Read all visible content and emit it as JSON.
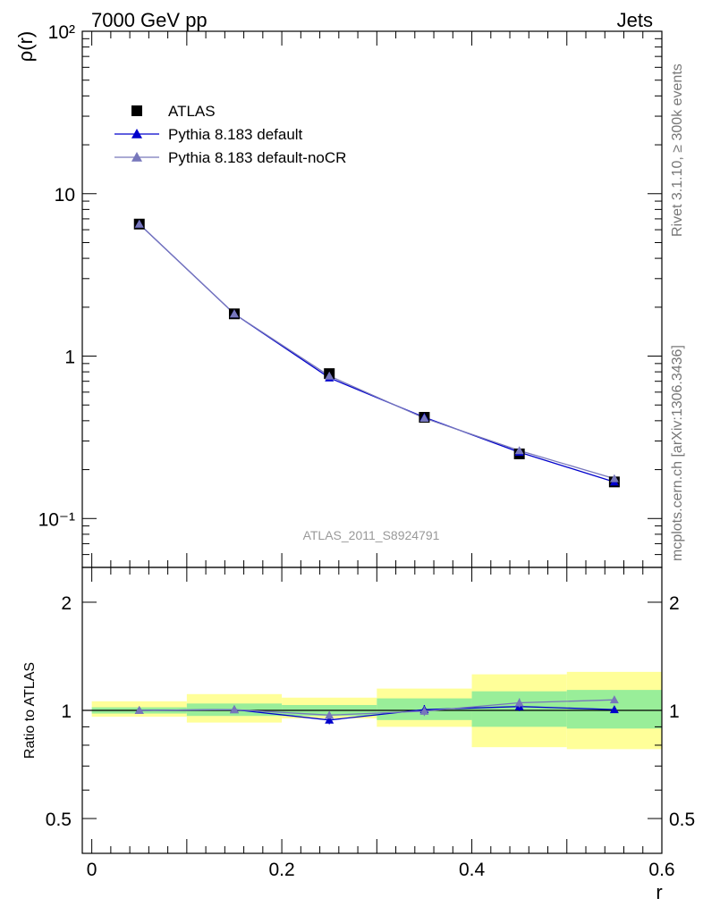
{
  "header": {
    "left": "7000 GeV pp",
    "right": "Jets"
  },
  "side_labels": {
    "rivet": "Rivet 3.1.10, ≥ 300k events",
    "mcplots": "mcplots.cern.ch [arXiv:1306.3436]"
  },
  "analysis_label": "ATLAS_2011_S8924791",
  "chart_data": [
    {
      "type": "line",
      "panel": "main",
      "title": "",
      "xlabel": "r",
      "ylabel": "ρ(r)",
      "yscale": "log",
      "xlim": [
        -0.01,
        0.6
      ],
      "ylim": [
        0.05,
        100
      ],
      "x": [
        0.05,
        0.15,
        0.25,
        0.35,
        0.45,
        0.55
      ],
      "x_bins": [
        [
          0.0,
          0.1
        ],
        [
          0.1,
          0.2
        ],
        [
          0.2,
          0.3
        ],
        [
          0.3,
          0.4
        ],
        [
          0.4,
          0.5
        ],
        [
          0.5,
          0.6
        ]
      ],
      "series": [
        {
          "name": "ATLAS",
          "marker": "square",
          "color": "#000000",
          "values": [
            6.5,
            1.82,
            0.78,
            0.42,
            0.25,
            0.168
          ]
        },
        {
          "name": "Pythia 8.183 default",
          "marker": "triangle",
          "color": "#0000cc",
          "values": [
            6.5,
            1.82,
            0.735,
            0.42,
            0.256,
            0.168
          ]
        },
        {
          "name": "Pythia 8.183 default-noCR",
          "marker": "triangle",
          "color": "#7777bb",
          "values": [
            6.5,
            1.82,
            0.755,
            0.415,
            0.262,
            0.176
          ]
        }
      ],
      "ytick_labels": [
        "10⁻¹",
        "1",
        "10",
        "10²"
      ],
      "legend_position": "top-left"
    },
    {
      "type": "line",
      "panel": "ratio",
      "xlabel": "r",
      "ylabel": "Ratio to ATLAS",
      "yscale": "log",
      "xlim": [
        -0.01,
        0.6
      ],
      "ylim": [
        0.4,
        2.5
      ],
      "x": [
        0.05,
        0.15,
        0.25,
        0.35,
        0.45,
        0.55
      ],
      "x_bins": [
        [
          0.0,
          0.1
        ],
        [
          0.1,
          0.2
        ],
        [
          0.2,
          0.3
        ],
        [
          0.3,
          0.4
        ],
        [
          0.4,
          0.5
        ],
        [
          0.5,
          0.6
        ]
      ],
      "stat_band": [
        [
          0.98,
          1.02
        ],
        [
          0.965,
          1.045
        ],
        [
          0.965,
          1.035
        ],
        [
          0.94,
          1.08
        ],
        [
          0.9,
          1.13
        ],
        [
          0.89,
          1.14
        ]
      ],
      "syst_band": [
        [
          0.96,
          1.06
        ],
        [
          0.925,
          1.11
        ],
        [
          0.95,
          1.085
        ],
        [
          0.9,
          1.15
        ],
        [
          0.79,
          1.26
        ],
        [
          0.78,
          1.28
        ]
      ],
      "series": [
        {
          "name": "Pythia 8.183 default",
          "marker": "triangle",
          "color": "#0000cc",
          "values": [
            1.0,
            1.005,
            0.94,
            1.005,
            1.025,
            1.005
          ],
          "errors": [
            0.01,
            0.02,
            0.025,
            0.03,
            0.03,
            0.02
          ]
        },
        {
          "name": "Pythia 8.183 default-noCR",
          "marker": "triangle",
          "color": "#7777bb",
          "values": [
            1.0,
            1.005,
            0.97,
            0.995,
            1.05,
            1.07
          ],
          "errors": [
            0.01,
            0.02,
            0.02,
            0.03,
            0.03,
            0.02
          ]
        }
      ],
      "ytick_labels": [
        "0.5",
        "1",
        "2"
      ],
      "xtick_labels": [
        "0",
        "0.2",
        "0.4",
        "0.6"
      ]
    }
  ],
  "colors": {
    "stat_band": "#99ee99",
    "syst_band": "#ffff99",
    "frame": "#000000"
  }
}
